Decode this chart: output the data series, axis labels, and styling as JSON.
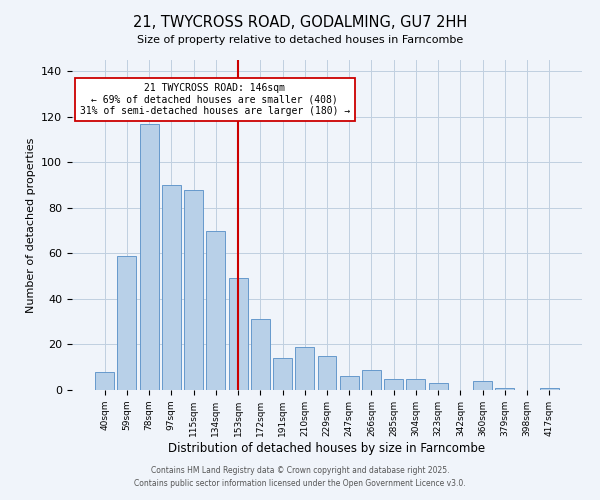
{
  "title": "21, TWYCROSS ROAD, GODALMING, GU7 2HH",
  "subtitle": "Size of property relative to detached houses in Farncombe",
  "xlabel": "Distribution of detached houses by size in Farncombe",
  "ylabel": "Number of detached properties",
  "bar_labels": [
    "40sqm",
    "59sqm",
    "78sqm",
    "97sqm",
    "115sqm",
    "134sqm",
    "153sqm",
    "172sqm",
    "191sqm",
    "210sqm",
    "229sqm",
    "247sqm",
    "266sqm",
    "285sqm",
    "304sqm",
    "323sqm",
    "342sqm",
    "360sqm",
    "379sqm",
    "398sqm",
    "417sqm"
  ],
  "bar_values": [
    8,
    59,
    117,
    90,
    88,
    70,
    49,
    31,
    14,
    19,
    15,
    6,
    9,
    5,
    5,
    3,
    0,
    4,
    1,
    0,
    1
  ],
  "bar_color": "#b8d0e8",
  "bar_edge_color": "#6699cc",
  "vline_x": 6.0,
  "vline_color": "#cc0000",
  "annotation_title": "21 TWYCROSS ROAD: 146sqm",
  "annotation_line1": "← 69% of detached houses are smaller (408)",
  "annotation_line2": "31% of semi-detached houses are larger (180) →",
  "annotation_box_color": "white",
  "annotation_box_edge": "#cc0000",
  "ylim": [
    0,
    145
  ],
  "yticks": [
    0,
    20,
    40,
    60,
    80,
    100,
    120,
    140
  ],
  "footer1": "Contains HM Land Registry data © Crown copyright and database right 2025.",
  "footer2": "Contains public sector information licensed under the Open Government Licence v3.0.",
  "bg_color": "#f0f4fa",
  "plot_bg_color": "#f0f4fa",
  "grid_color": "#c0cfe0"
}
